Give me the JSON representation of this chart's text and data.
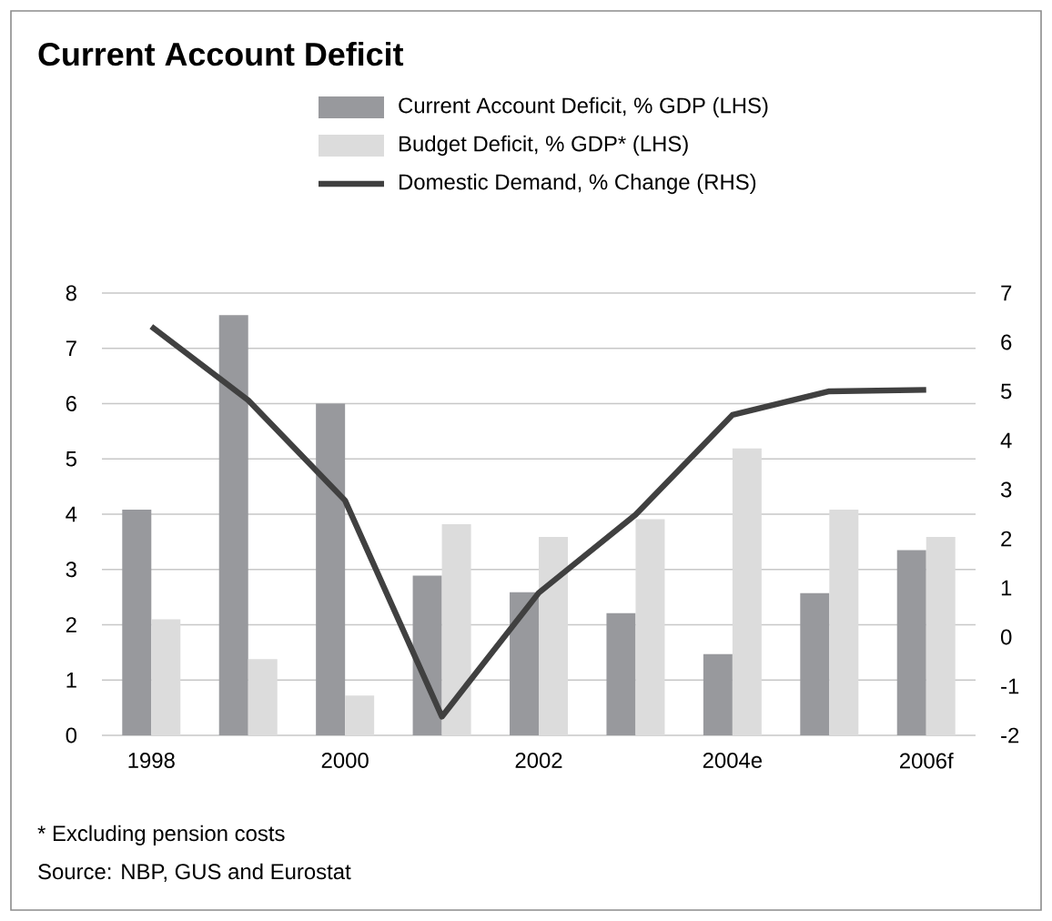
{
  "chart_data": {
    "type": "bar",
    "title": "Current Account Deficit",
    "categories": [
      "1998",
      null,
      "2000",
      null,
      "2002",
      null,
      "2004e",
      null,
      "2006f"
    ],
    "series": [
      {
        "name": "Current Account Deficit, % GDP (LHS)",
        "color": "#98999d",
        "values": [
          4.08,
          7.6,
          6.0,
          2.89,
          2.59,
          2.21,
          1.47,
          2.57,
          3.35
        ]
      },
      {
        "name": "Budget Deficit, % GDP* (LHS)",
        "color": "#dcdcdc",
        "values": [
          2.1,
          1.38,
          0.72,
          3.82,
          3.59,
          3.91,
          5.19,
          4.08,
          3.59
        ]
      },
      {
        "name": "Domestic Demand, % Change (RHS)",
        "type": "line",
        "axis": "y2",
        "color": "#404040",
        "values": [
          6.32,
          4.82,
          2.78,
          -1.62,
          0.9,
          2.49,
          4.52,
          5.0,
          5.03
        ]
      }
    ],
    "ylim": [
      0,
      8
    ],
    "yticks": [
      0,
      1,
      2,
      3,
      4,
      5,
      6,
      7,
      8
    ],
    "y2lim": [
      -2,
      7
    ],
    "y2ticks": [
      -2,
      -1,
      0,
      1,
      2,
      3,
      4,
      5,
      6,
      7
    ],
    "grid": "y",
    "legend": "top",
    "annotations": [
      "* Excluding pension costs",
      "Source: NBP, GUS and Eurostat"
    ]
  }
}
